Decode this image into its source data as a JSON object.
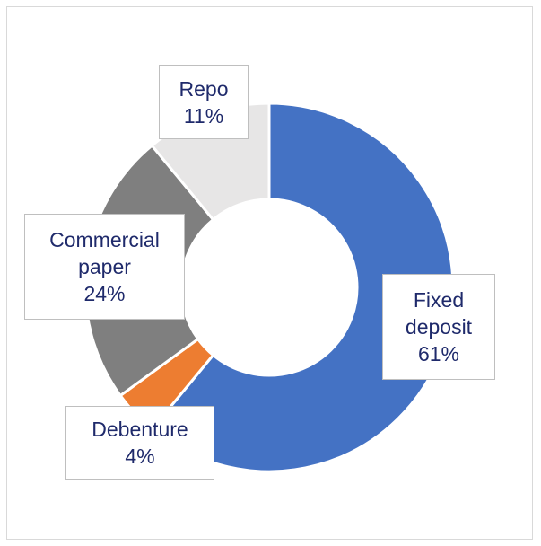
{
  "chart_data": {
    "type": "pie",
    "donut": true,
    "title": "",
    "slices": [
      {
        "label": "Fixed deposit",
        "label_lines": [
          "Fixed",
          "deposit"
        ],
        "value": 61,
        "value_label": "61%",
        "color": "#4472c4"
      },
      {
        "label": "Debenture",
        "label_lines": [
          "Debenture"
        ],
        "value": 4,
        "value_label": "4%",
        "color": "#ed7d31"
      },
      {
        "label": "Commercial paper",
        "label_lines": [
          "Commercial",
          "paper"
        ],
        "value": 24,
        "value_label": "24%",
        "color": "#7f7f7f"
      },
      {
        "label": "Repo",
        "label_lines": [
          "Repo"
        ],
        "value": 11,
        "value_label": "11%",
        "color": "#e7e6e6"
      }
    ],
    "legend": "none",
    "data_labels": "callouts"
  },
  "colors": {
    "label_text": "#1f2a6b",
    "slice_separator": "#ffffff"
  }
}
